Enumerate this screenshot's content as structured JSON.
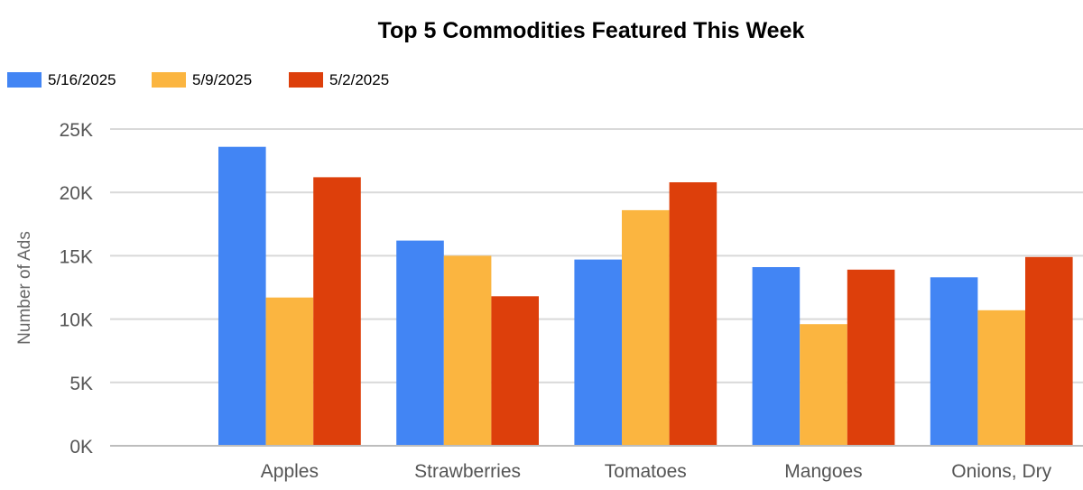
{
  "chart_data": {
    "type": "bar",
    "title": "Top 5 Commodities Featured This Week",
    "xlabel": "",
    "ylabel": "Number of Ads",
    "categories": [
      "Apples",
      "Strawberries",
      "Tomatoes",
      "Mangoes",
      "Onions, Dry"
    ],
    "series": [
      {
        "name": "5/16/2025",
        "color": "#4285f4",
        "values": [
          23600,
          16200,
          14700,
          14100,
          13300
        ]
      },
      {
        "name": "5/9/2025",
        "color": "#fbb540",
        "values": [
          11700,
          15000,
          18600,
          9600,
          10700
        ]
      },
      {
        "name": "5/2/2025",
        "color": "#dd3f0b",
        "values": [
          21200,
          11800,
          20800,
          13900,
          14900
        ]
      }
    ],
    "ylim": [
      0,
      25000
    ],
    "yticks": [
      {
        "value": 0,
        "label": "0K"
      },
      {
        "value": 5000,
        "label": "5K"
      },
      {
        "value": 10000,
        "label": "10K"
      },
      {
        "value": 15000,
        "label": "15K"
      },
      {
        "value": 20000,
        "label": "20K"
      },
      {
        "value": 25000,
        "label": "25K"
      }
    ],
    "grid": true,
    "legend_position": "top-left"
  }
}
